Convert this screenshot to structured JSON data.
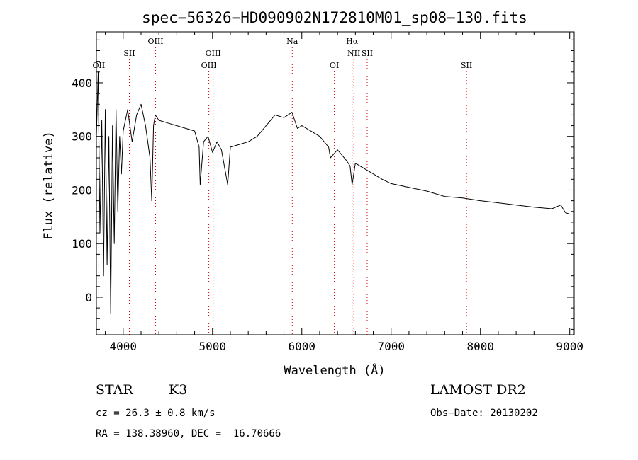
{
  "chart_data": {
    "type": "line",
    "title": "spec−56326−HD090902N172810M01_sp08−130.fits",
    "xlabel": "Wavelength (Å)",
    "ylabel": "Flux (relative)",
    "xlim": [
      3700,
      9050
    ],
    "ylim": [
      -70,
      495
    ],
    "xticks": [
      4000,
      5000,
      6000,
      7000,
      8000,
      9000
    ],
    "yticks": [
      0,
      100,
      200,
      300,
      400
    ],
    "grid": false,
    "series": [
      {
        "color": "#000000",
        "x": [
          3700,
          3720,
          3740,
          3760,
          3780,
          3800,
          3820,
          3840,
          3860,
          3880,
          3900,
          3920,
          3940,
          3960,
          3980,
          4000,
          4050,
          4100,
          4150,
          4200,
          4250,
          4300,
          4320,
          4340,
          4360,
          4400,
          4500,
          4600,
          4700,
          4800,
          4850,
          4862,
          4900,
          4950,
          5000,
          5050,
          5100,
          5170,
          5200,
          5300,
          5400,
          5500,
          5600,
          5700,
          5800,
          5890,
          5950,
          6000,
          6100,
          6200,
          6300,
          6320,
          6400,
          6500,
          6540,
          6563,
          6600,
          6700,
          6800,
          6900,
          7000,
          7200,
          7400,
          7600,
          7800,
          8000,
          8200,
          8400,
          8600,
          8800,
          8900,
          8950,
          9000
        ],
        "y": [
          300,
          420,
          120,
          330,
          40,
          350,
          60,
          300,
          -30,
          320,
          100,
          350,
          160,
          300,
          230,
          310,
          350,
          290,
          340,
          360,
          320,
          260,
          180,
          320,
          340,
          330,
          325,
          320,
          315,
          310,
          280,
          210,
          290,
          300,
          270,
          290,
          275,
          210,
          280,
          285,
          290,
          300,
          320,
          340,
          335,
          345,
          315,
          320,
          310,
          300,
          280,
          260,
          275,
          255,
          245,
          210,
          250,
          240,
          230,
          220,
          212,
          205,
          198,
          188,
          185,
          180,
          176,
          172,
          168,
          165,
          172,
          158,
          155
        ]
      }
    ],
    "lines": [
      {
        "label": "OII",
        "x": 3727,
        "row": 3
      },
      {
        "label": "SII",
        "x": 4069,
        "row": 2
      },
      {
        "label": "OIII",
        "x": 4363,
        "row": 1
      },
      {
        "label": "OIII",
        "x": 4959,
        "row": 3
      },
      {
        "label": "OIII",
        "x": 5007,
        "row": 2
      },
      {
        "label": "Na",
        "x": 5893,
        "row": 1
      },
      {
        "label": "OI",
        "x": 6364,
        "row": 3
      },
      {
        "label": "Hα",
        "x": 6563,
        "row": 1
      },
      {
        "label": "NII",
        "x": 6583,
        "row": 2
      },
      {
        "label": "SII",
        "x": 6732,
        "row": 2
      },
      {
        "label": "SII",
        "x": 7844,
        "row": 3
      }
    ]
  },
  "info": {
    "object_class": "STAR",
    "subclass": "K3",
    "survey": "LAMOST DR2",
    "cz": "cz = 26.3 ± 0.8 km/s",
    "obs_date": "Obs−Date: 20130202",
    "radec": "RA = 138.38960, DEC =  16.70666"
  }
}
